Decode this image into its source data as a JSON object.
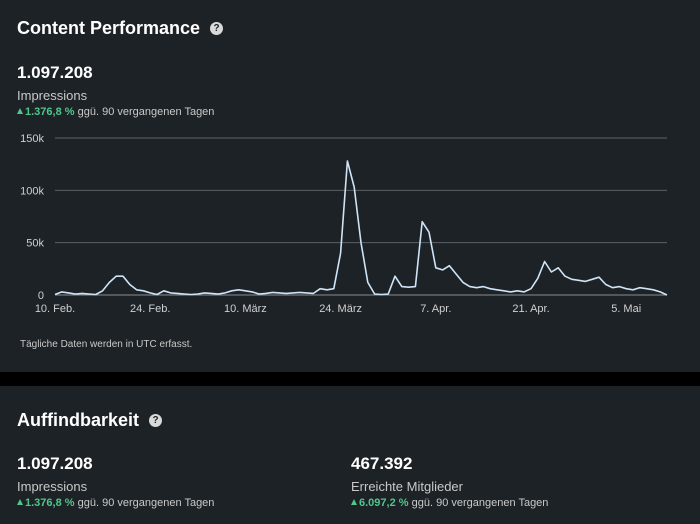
{
  "performance": {
    "title": "Content Performance",
    "help_icon": "?",
    "metric": {
      "value": "1.097.208",
      "label": "Impressions",
      "change_pct": "1.376,8 %",
      "change_text": "ggü. 90 vergangenen Tagen"
    },
    "footnote": "Tägliche Daten werden in UTC erfasst."
  },
  "chart_data": {
    "type": "line",
    "y_ticks": [
      {
        "value": 0,
        "label": "0"
      },
      {
        "value": 50000,
        "label": "50k"
      },
      {
        "value": 100000,
        "label": "100k"
      },
      {
        "value": 150000,
        "label": "150k"
      }
    ],
    "ylim": [
      0,
      150000
    ],
    "x_ticks": [
      {
        "day": 0,
        "label": "10. Feb."
      },
      {
        "day": 14,
        "label": "24. Feb."
      },
      {
        "day": 28,
        "label": "10. März"
      },
      {
        "day": 42,
        "label": "24. März"
      },
      {
        "day": 56,
        "label": "7. Apr."
      },
      {
        "day": 70,
        "label": "21. Apr."
      },
      {
        "day": 84,
        "label": "5. Mai"
      }
    ],
    "xlim": [
      0,
      90
    ],
    "line_color": "#cfe4f7",
    "values": [
      500,
      3000,
      2000,
      1000,
      1500,
      1000,
      500,
      4000,
      12000,
      18000,
      18000,
      10000,
      5000,
      4000,
      2000,
      500,
      4000,
      2000,
      1500,
      1000,
      500,
      1000,
      2000,
      1500,
      1000,
      2000,
      4000,
      5000,
      4000,
      3000,
      1000,
      1500,
      2500,
      2000,
      1500,
      2000,
      2500,
      2000,
      1500,
      6000,
      5000,
      6000,
      40000,
      128000,
      103000,
      50000,
      12000,
      1000,
      500,
      1000,
      18000,
      8000,
      7500,
      8000,
      70000,
      60000,
      26000,
      24000,
      28000,
      20000,
      12000,
      8000,
      7000,
      8000,
      6000,
      5000,
      4000,
      3000,
      4000,
      3000,
      6000,
      16000,
      32000,
      22000,
      26000,
      18000,
      15000,
      14000,
      13000,
      15000,
      17000,
      10000,
      7000,
      8000,
      6000,
      5000,
      7000,
      6000,
      5000,
      3000,
      0
    ]
  },
  "findability": {
    "title": "Auffindbarkeit",
    "help_icon": "?",
    "metrics": [
      {
        "value": "1.097.208",
        "label": "Impressions",
        "change_pct": "1.376,8 %",
        "change_text": "ggü. 90 vergangenen Tagen"
      },
      {
        "value": "467.392",
        "label": "Erreichte Mitglieder",
        "change_pct": "6.097,2 %",
        "change_text": "ggü. 90 vergangenen Tagen"
      }
    ]
  }
}
